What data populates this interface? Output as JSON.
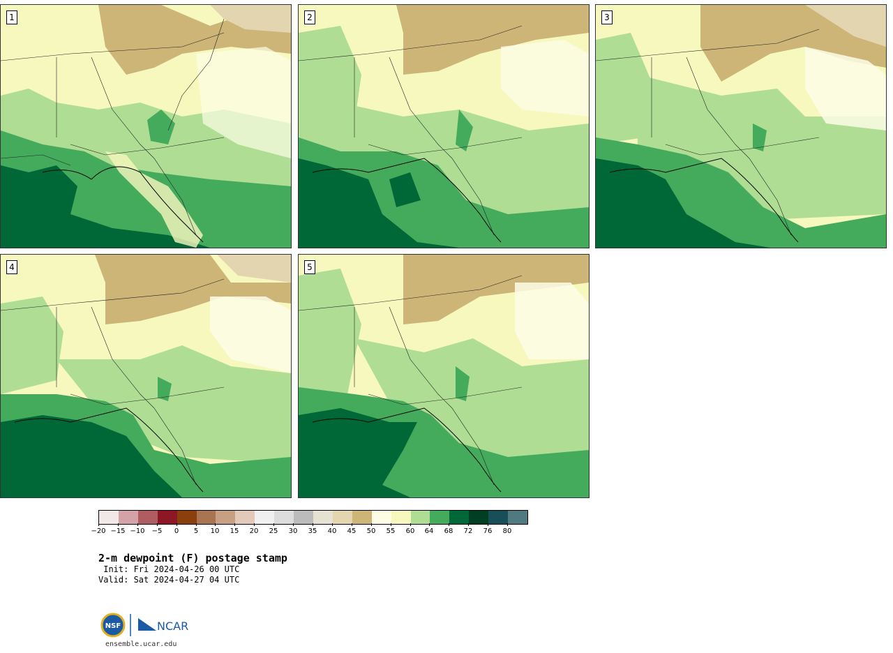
{
  "panels": [
    {
      "label": "1"
    },
    {
      "label": "2"
    },
    {
      "label": "3"
    },
    {
      "label": "4"
    },
    {
      "label": "5"
    }
  ],
  "colorbar": {
    "colors": [
      "#f3e8e8",
      "#d4a3a8",
      "#b05c63",
      "#8b1824",
      "#8a3f0d",
      "#a97452",
      "#c7a084",
      "#e3c9b8",
      "#f0f0f0",
      "#dcdcdc",
      "#bbbbbb",
      "#e6e2d2",
      "#e4d5b1",
      "#cdb477",
      "#fdfde6",
      "#f6f8be",
      "#aedd93",
      "#45ab5c",
      "#006837",
      "#013f22",
      "#174e57",
      "#517a80"
    ],
    "tick_labels": [
      "−20",
      "−15",
      "−10",
      "−5",
      "0",
      "5",
      "10",
      "15",
      "20",
      "25",
      "30",
      "35",
      "40",
      "45",
      "50",
      "55",
      "60",
      "64",
      "68",
      "72",
      "76",
      "80"
    ]
  },
  "title": "2-m dewpoint (F) postage stamp",
  "init": " Init: Fri 2024-04-26 00 UTC",
  "valid": "Valid: Sat 2024-04-27 04 UTC",
  "site": "ensemble.ucar.edu",
  "logo": {
    "nsf_text": "NSF",
    "ncar_text": "NCAR"
  }
}
